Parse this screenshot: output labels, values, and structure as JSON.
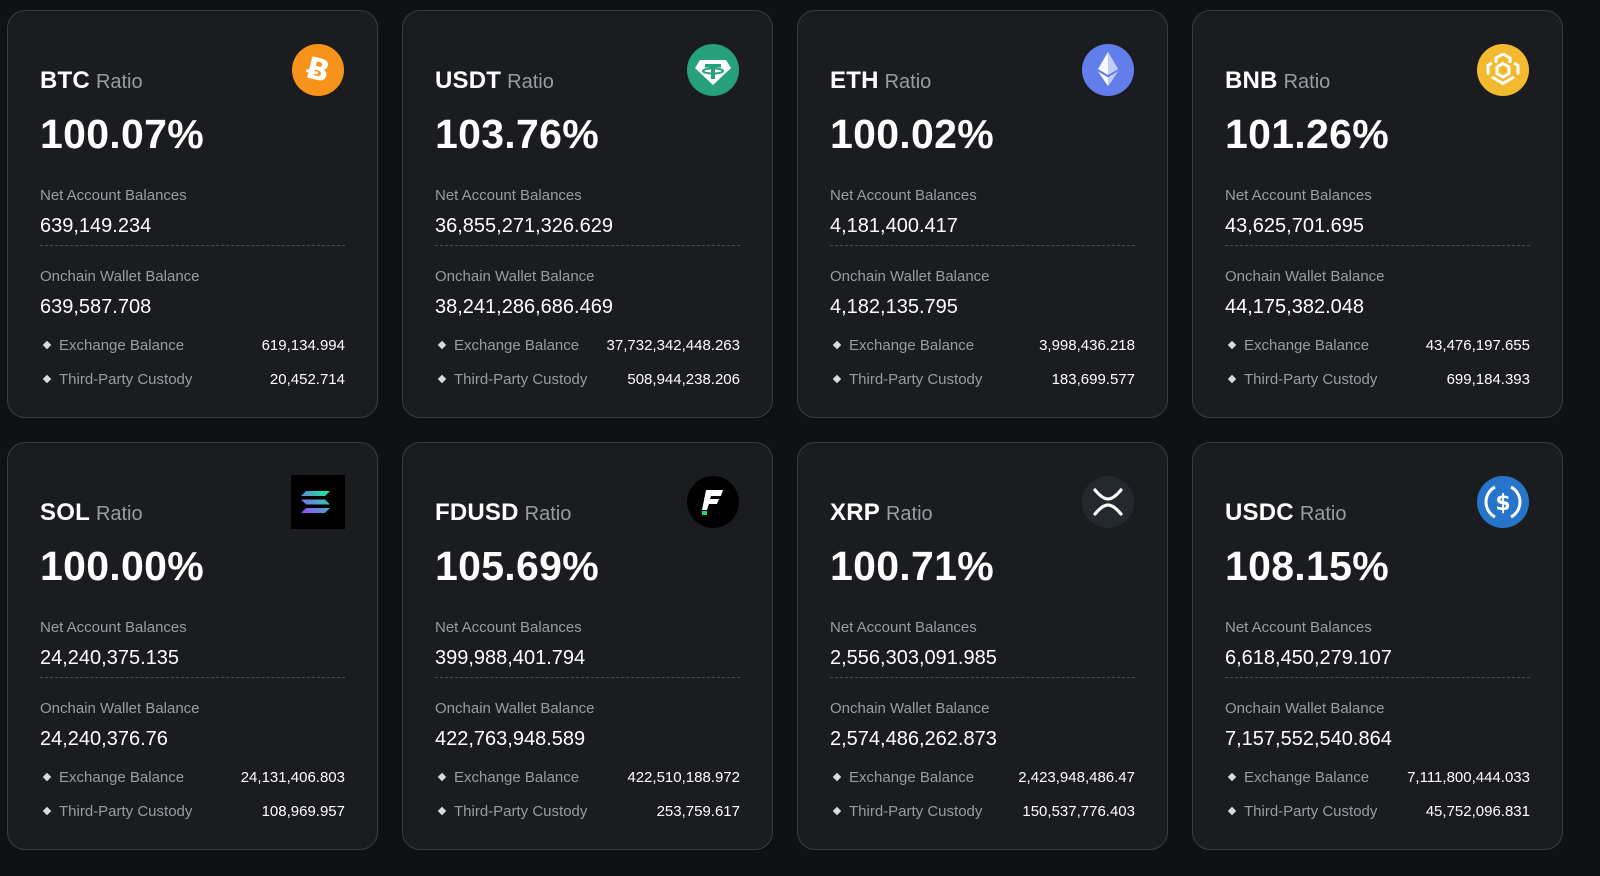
{
  "labels": {
    "ratio": "Ratio",
    "net": "Net Account Balances",
    "onchain": "Onchain Wallet Balance",
    "exchange": "Exchange Balance",
    "custody": "Third-Party Custody"
  },
  "cards": [
    {
      "coin": "BTC",
      "ratio": "100.07%",
      "net": "639,149.234",
      "onchain": "639,587.708",
      "exchange": "619,134.994",
      "custody": "20,452.714",
      "icon": "bitcoin-icon",
      "color": "#f7931a"
    },
    {
      "coin": "USDT",
      "ratio": "103.76%",
      "net": "36,855,271,326.629",
      "onchain": "38,241,286,686.469",
      "exchange": "37,732,342,448.263",
      "custody": "508,944,238.206",
      "icon": "tether-icon",
      "color": "#26a17b"
    },
    {
      "coin": "ETH",
      "ratio": "100.02%",
      "net": "4,181,400.417",
      "onchain": "4,182,135.795",
      "exchange": "3,998,436.218",
      "custody": "183,699.577",
      "icon": "ethereum-icon",
      "color": "#627eea"
    },
    {
      "coin": "BNB",
      "ratio": "101.26%",
      "net": "43,625,701.695",
      "onchain": "44,175,382.048",
      "exchange": "43,476,197.655",
      "custody": "699,184.393",
      "icon": "bnb-icon",
      "color": "#f3ba2f"
    },
    {
      "coin": "SOL",
      "ratio": "100.00%",
      "net": "24,240,375.135",
      "onchain": "24,240,376.76",
      "exchange": "24,131,406.803",
      "custody": "108,969.957",
      "icon": "solana-icon",
      "color": "#000000"
    },
    {
      "coin": "FDUSD",
      "ratio": "105.69%",
      "net": "399,988,401.794",
      "onchain": "422,763,948.589",
      "exchange": "422,510,188.972",
      "custody": "253,759.617",
      "icon": "fdusd-icon",
      "color": "#000000"
    },
    {
      "coin": "XRP",
      "ratio": "100.71%",
      "net": "2,556,303,091.985",
      "onchain": "2,574,486,262.873",
      "exchange": "2,423,948,486.47",
      "custody": "150,537,776.403",
      "icon": "xrp-icon",
      "color": "#23292f"
    },
    {
      "coin": "USDC",
      "ratio": "108.15%",
      "net": "6,618,450,279.107",
      "onchain": "7,157,552,540.864",
      "exchange": "7,111,800,444.033",
      "custody": "45,752,096.831",
      "icon": "usdc-icon",
      "color": "#2775ca"
    }
  ]
}
